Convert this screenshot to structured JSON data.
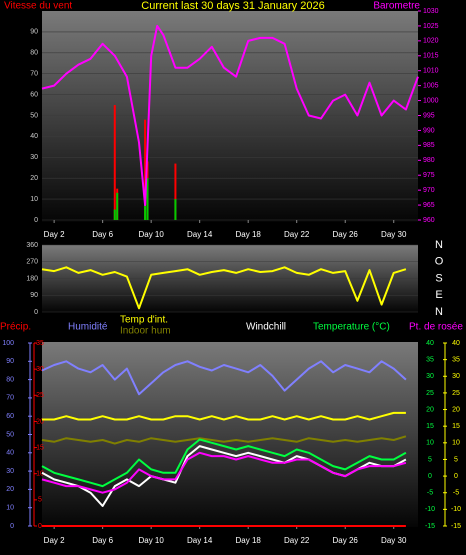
{
  "chart_data": [
    {
      "type": "line",
      "title": "Current last 30 days 31 January 2026",
      "xlim": [
        1,
        32
      ],
      "xticks": [
        {
          "value": 2,
          "label": "Day 2"
        },
        {
          "value": 6,
          "label": "Day 6"
        },
        {
          "value": 10,
          "label": "Day 10"
        },
        {
          "value": 14,
          "label": "Day 14"
        },
        {
          "value": 18,
          "label": "Day 18"
        },
        {
          "value": 22,
          "label": "Day 22"
        },
        {
          "value": 26,
          "label": "Day 26"
        },
        {
          "value": 30,
          "label": "Day 30"
        }
      ],
      "ylim": [
        0,
        100
      ],
      "yticks": [
        0,
        10,
        20,
        30,
        40,
        50,
        60,
        70,
        80,
        90
      ],
      "y2lim": [
        960,
        1030
      ],
      "y2ticks": [
        960,
        965,
        970,
        975,
        980,
        985,
        990,
        995,
        1000,
        1005,
        1010,
        1015,
        1020,
        1025,
        1030
      ],
      "grid": true,
      "series": [
        {
          "name": "Vitesse du vent",
          "type": "bar",
          "color": "#ff0000",
          "axis": "y",
          "x": [
            7,
            7.2,
            9.5,
            9.7,
            12
          ],
          "values": [
            55,
            15,
            48,
            28,
            27
          ]
        },
        {
          "type": "bar",
          "color": "#00cc00",
          "axis": "y",
          "x": [
            7,
            7.2,
            9.5,
            9.7,
            12
          ],
          "values": [
            5,
            13,
            12,
            20,
            10
          ]
        },
        {
          "name": "Barometre",
          "type": "line",
          "color": "#ff00ff",
          "axis": "y2",
          "x": [
            1,
            2,
            3,
            4,
            5,
            6,
            7,
            8,
            9,
            9.5,
            10,
            10.5,
            11,
            12,
            13,
            14,
            15,
            16,
            17,
            18,
            19,
            20,
            21,
            22,
            23,
            24,
            25,
            26,
            27,
            28,
            29,
            30,
            31,
            32
          ],
          "values": [
            1004,
            1005,
            1009,
            1012,
            1014,
            1019,
            1015,
            1008,
            986,
            965,
            1015,
            1025,
            1022,
            1011,
            1011,
            1014,
            1018,
            1011,
            1008,
            1020,
            1021,
            1021,
            1019,
            1004,
            995,
            994,
            1000,
            1002,
            995,
            1006,
            995,
            1000,
            997,
            1008
          ]
        }
      ]
    },
    {
      "type": "line",
      "xlim": [
        1,
        32
      ],
      "ylim": [
        0,
        360
      ],
      "yticks": [
        0,
        90,
        180,
        270,
        360
      ],
      "direction_labels": [
        "N",
        "O",
        "S",
        "E",
        "N"
      ],
      "grid": true,
      "series": [
        {
          "type": "line",
          "color": "#ffff00",
          "axis": "y",
          "x": [
            1,
            2,
            3,
            4,
            5,
            6,
            7,
            8,
            9,
            10,
            11,
            12,
            13,
            14,
            15,
            16,
            17,
            18,
            19,
            20,
            21,
            22,
            23,
            24,
            25,
            26,
            27,
            28,
            29,
            30,
            31
          ],
          "values": [
            230,
            220,
            240,
            210,
            225,
            200,
            215,
            190,
            20,
            200,
            210,
            220,
            230,
            200,
            215,
            225,
            210,
            230,
            215,
            220,
            240,
            210,
            200,
            230,
            210,
            220,
            60,
            225,
            40,
            210,
            230
          ]
        }
      ]
    },
    {
      "type": "line",
      "xlim": [
        1,
        32
      ],
      "xticks": [
        {
          "value": 2,
          "label": "Day 2"
        },
        {
          "value": 6,
          "label": "Day 6"
        },
        {
          "value": 10,
          "label": "Day 10"
        },
        {
          "value": 14,
          "label": "Day 14"
        },
        {
          "value": 18,
          "label": "Day 18"
        },
        {
          "value": 22,
          "label": "Day 22"
        },
        {
          "value": 26,
          "label": "Day 26"
        },
        {
          "value": 30,
          "label": "Day 30"
        }
      ],
      "ylim": [
        0,
        100
      ],
      "yticks": [
        0,
        10,
        20,
        30,
        40,
        50,
        60,
        70,
        80,
        90,
        100
      ],
      "precip_lim": [
        0,
        35
      ],
      "precip_ticks": [
        0,
        5,
        10,
        15,
        20,
        25,
        30,
        35
      ],
      "y2lim": [
        -15,
        40
      ],
      "y2ticks": [
        -15,
        -10,
        -5,
        0,
        5,
        10,
        15,
        20,
        25,
        30,
        35,
        40
      ],
      "series": [
        {
          "name": "Précip.",
          "type": "line",
          "color": "#ff0000",
          "axis": "precip",
          "values": [
            0,
            0,
            0,
            0,
            0,
            0,
            0,
            0,
            0,
            0,
            0,
            0,
            0,
            0,
            0,
            0,
            0,
            0,
            0,
            0,
            0,
            0,
            0,
            0,
            0,
            0,
            0,
            0,
            0,
            0,
            0
          ]
        },
        {
          "name": "Humidité",
          "type": "line",
          "color": "#8080ff",
          "axis": "y",
          "values": [
            85,
            88,
            90,
            86,
            84,
            88,
            80,
            86,
            72,
            78,
            84,
            88,
            90,
            87,
            85,
            88,
            86,
            84,
            88,
            82,
            74,
            80,
            86,
            90,
            84,
            88,
            86,
            84,
            90,
            86,
            80
          ]
        },
        {
          "name": "Temp d'int.",
          "type": "line",
          "color": "#ffff00",
          "axis": "y2",
          "values": [
            17,
            17,
            18,
            17,
            17,
            18,
            17,
            17,
            18,
            17,
            17,
            18,
            18,
            17,
            18,
            17,
            18,
            17,
            17,
            18,
            17,
            18,
            17,
            18,
            17,
            17,
            18,
            17,
            18,
            19,
            19
          ]
        },
        {
          "name": "Indoor hum",
          "type": "line",
          "color": "#808000",
          "axis": "y",
          "values": [
            47,
            46,
            48,
            47,
            46,
            47,
            45,
            47,
            46,
            48,
            47,
            46,
            47,
            48,
            47,
            46,
            47,
            46,
            47,
            48,
            47,
            46,
            48,
            47,
            46,
            47,
            46,
            47,
            48,
            47,
            49
          ]
        },
        {
          "name": "Windchill",
          "type": "line",
          "color": "#ffffff",
          "axis": "y2",
          "values": [
            1,
            -1,
            -2,
            -3,
            -5,
            -9,
            -3,
            -1,
            -3,
            0,
            -1,
            -2,
            6,
            9,
            8,
            7,
            6,
            7,
            6,
            5,
            4,
            6,
            5,
            3,
            1,
            0,
            2,
            4,
            3,
            3,
            5
          ]
        },
        {
          "name": "Temperature (°C)",
          "type": "line",
          "color": "#00ff40",
          "axis": "y2",
          "values": [
            3,
            1,
            0,
            -1,
            -2,
            -3,
            -1,
            1,
            5,
            2,
            1,
            1,
            8,
            11,
            10,
            9,
            8,
            9,
            8,
            7,
            6,
            8,
            7,
            5,
            3,
            2,
            4,
            6,
            5,
            5,
            7
          ]
        },
        {
          "name": "Pt. de rosée",
          "type": "line",
          "color": "#ff00ff",
          "axis": "y2",
          "values": [
            -1,
            -2,
            -3,
            -3,
            -4,
            -5,
            -4,
            -2,
            2,
            0,
            -1,
            -1,
            5,
            7,
            6,
            6,
            5,
            6,
            5,
            4,
            4,
            5,
            5,
            3,
            1,
            0,
            2,
            3,
            3,
            3,
            4
          ]
        }
      ],
      "x": [
        1,
        2,
        3,
        4,
        5,
        6,
        7,
        8,
        9,
        10,
        11,
        12,
        13,
        14,
        15,
        16,
        17,
        18,
        19,
        20,
        21,
        22,
        23,
        24,
        25,
        26,
        27,
        28,
        29,
        30,
        31
      ]
    }
  ]
}
